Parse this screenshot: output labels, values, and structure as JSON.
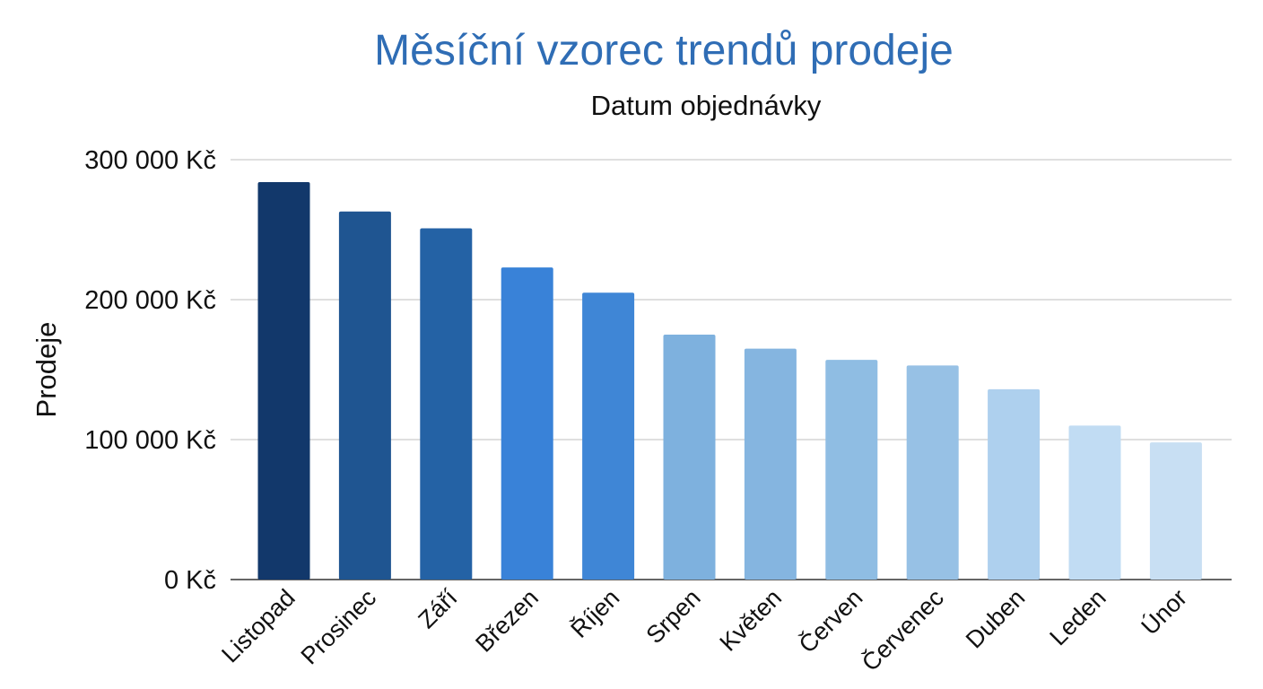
{
  "chart_data": {
    "type": "bar",
    "title": "Měsíční vzorec trendů prodeje",
    "subtitle": "Datum objednávky",
    "ylabel": "Prodeje",
    "xlabel": "",
    "ylim": [
      0,
      300000
    ],
    "yticks": [
      0,
      100000,
      200000,
      300000
    ],
    "ytick_labels": [
      "0 Kč",
      "100 000 Kč",
      "200 000 Kč",
      "300 000 Kč"
    ],
    "grid": true,
    "categories": [
      "Listopad",
      "Prosinec",
      "Září",
      "Březen",
      "Říjen",
      "Srpen",
      "Květen",
      "Červen",
      "Červenec",
      "Duben",
      "Leden",
      "Únor"
    ],
    "values": [
      284000,
      263000,
      251000,
      223000,
      205000,
      175000,
      165000,
      157000,
      153000,
      136000,
      110000,
      98000
    ],
    "colors": [
      "#12386b",
      "#1f5591",
      "#2462a5",
      "#3982d8",
      "#3f86d6",
      "#7eb1de",
      "#85b5e0",
      "#8fbde3",
      "#97c1e5",
      "#aed0ee",
      "#c1dcf3",
      "#c8dff3"
    ],
    "title_color": "#2f6db5"
  }
}
